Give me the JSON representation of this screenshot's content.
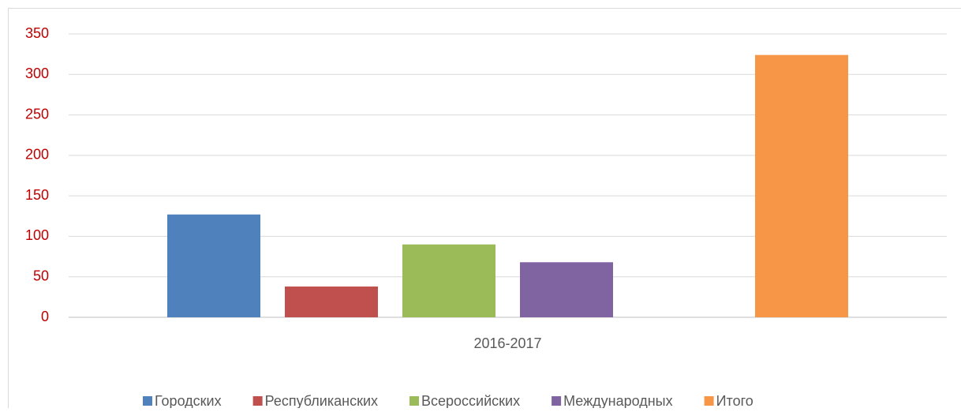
{
  "chart_data": {
    "type": "bar",
    "categories": [
      "2016-2017"
    ],
    "series": [
      {
        "name": "Городских",
        "color": "#4f81bd",
        "values": [
          127
        ]
      },
      {
        "name": "Республиканских",
        "color": "#c0504d",
        "values": [
          38
        ]
      },
      {
        "name": "Всероссийских",
        "color": "#9bbb59",
        "values": [
          90
        ]
      },
      {
        "name": "Международных",
        "color": "#8064a2",
        "values": [
          68
        ]
      },
      {
        "name": "Итого",
        "color": "#f79646",
        "values": [
          324
        ]
      }
    ],
    "ylim": [
      0,
      350
    ],
    "yticks": [
      0,
      50,
      100,
      150,
      200,
      250,
      300,
      350
    ],
    "grid": true,
    "legend": "bottom"
  }
}
